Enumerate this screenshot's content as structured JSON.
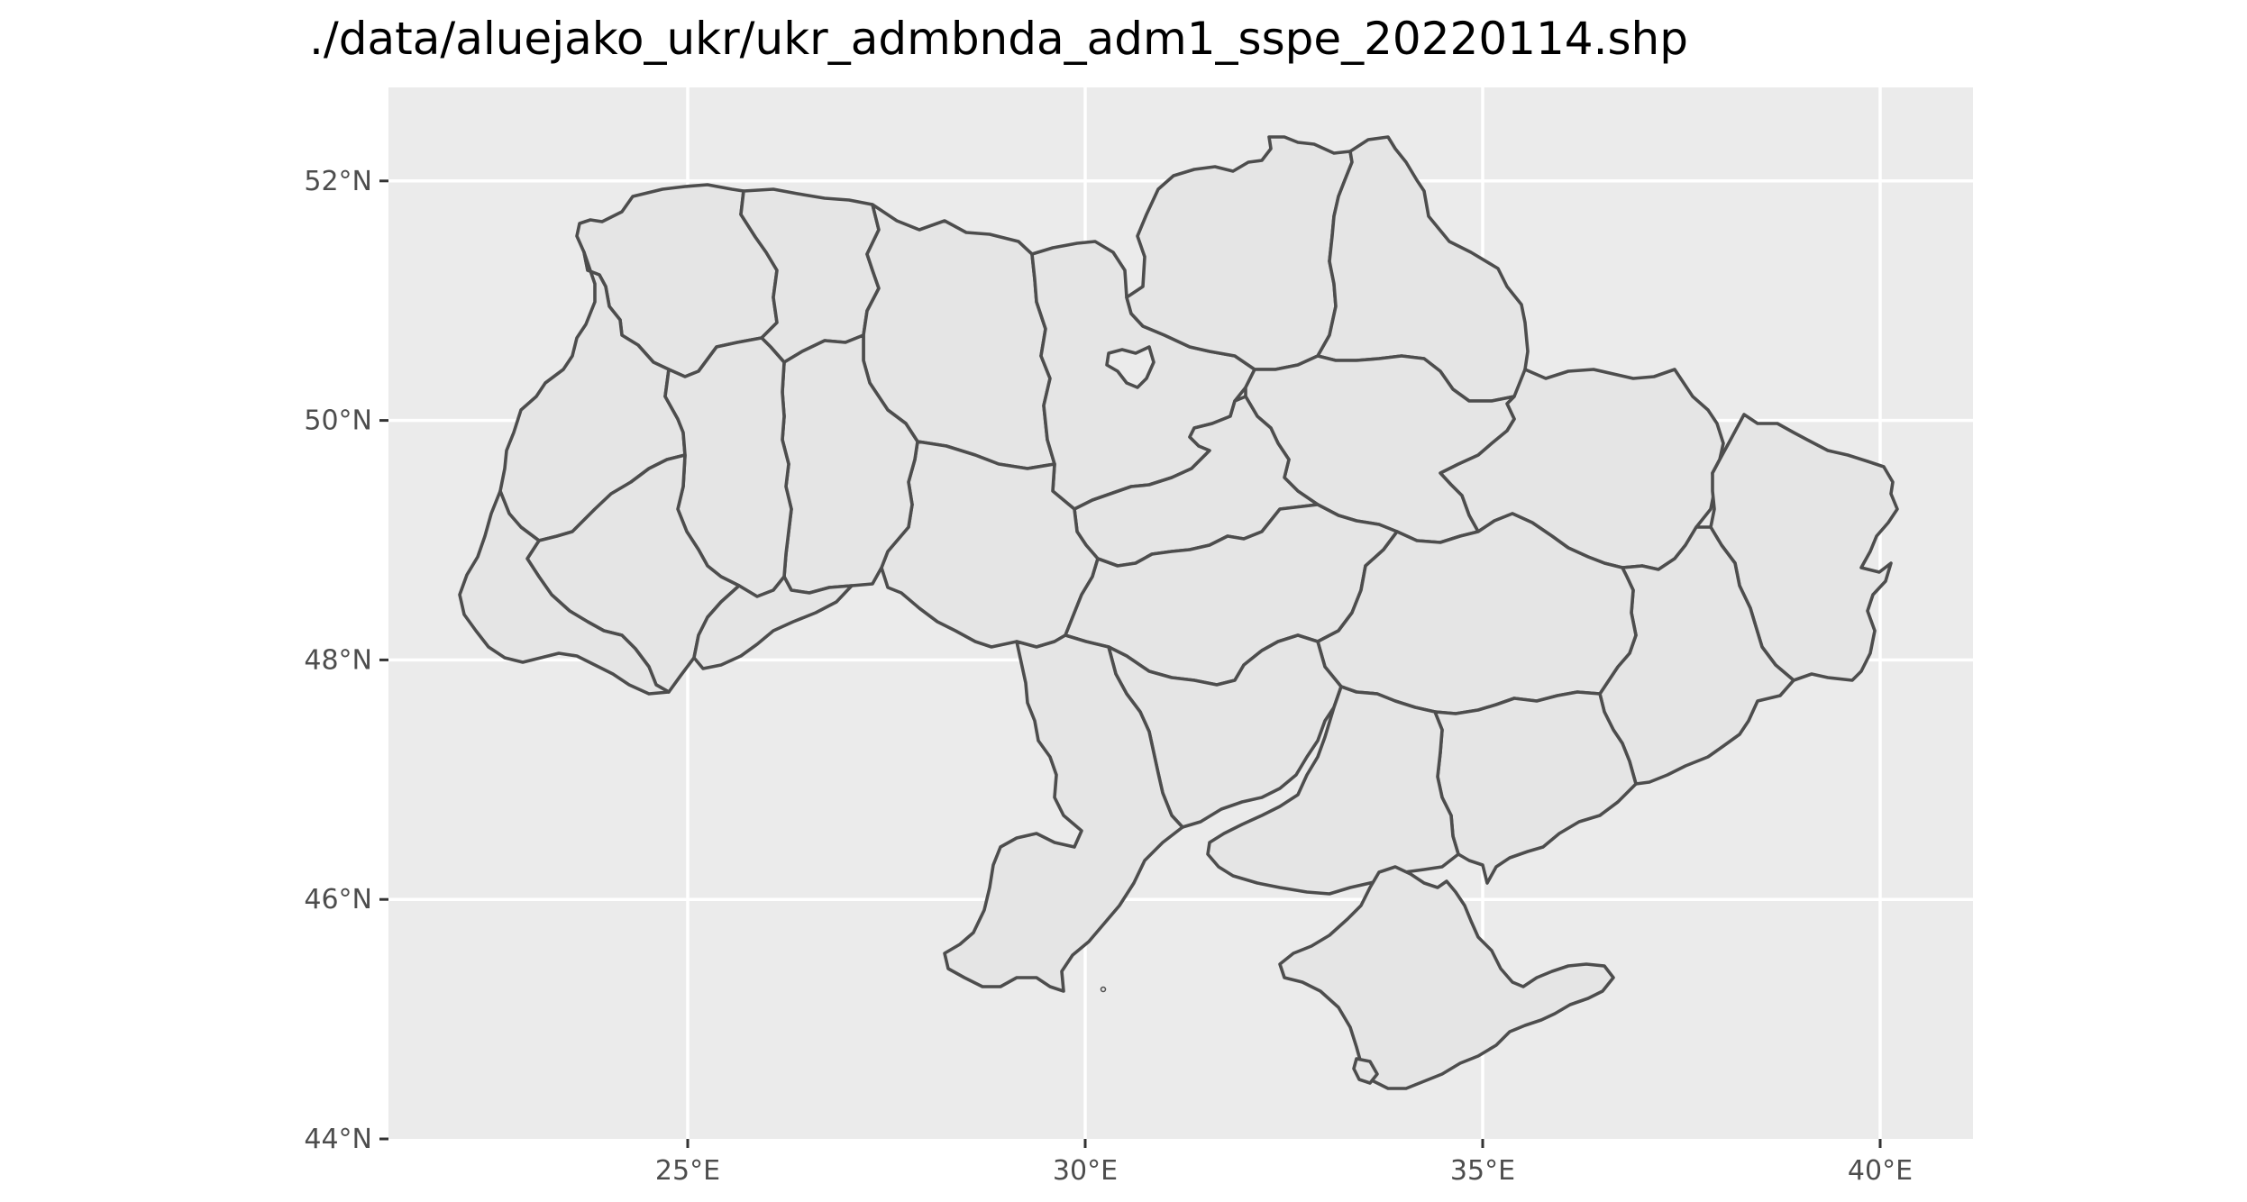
{
  "map": {
    "title": "./data/aluejako_ukr/ukr_admbnda_adm1_sspe_20220114.shp",
    "x_ticks": [
      {
        "value": 25,
        "label": "25°E"
      },
      {
        "value": 30,
        "label": "30°E"
      },
      {
        "value": 35,
        "label": "35°E"
      },
      {
        "value": 40,
        "label": "40°E"
      }
    ],
    "y_ticks": [
      {
        "value": 52,
        "label": "52°N"
      },
      {
        "value": 50,
        "label": "50°N"
      },
      {
        "value": 48,
        "label": "48°N"
      },
      {
        "value": 46,
        "label": "46°N"
      },
      {
        "value": 44,
        "label": "44°N"
      }
    ],
    "colors": {
      "panel": "#ebebeb",
      "grid": "#ffffff",
      "region_fill": "#e5e5e5",
      "region_border": "#4d4d4d",
      "tick_label": "#4d4d4d",
      "title": "#000000"
    }
  }
}
